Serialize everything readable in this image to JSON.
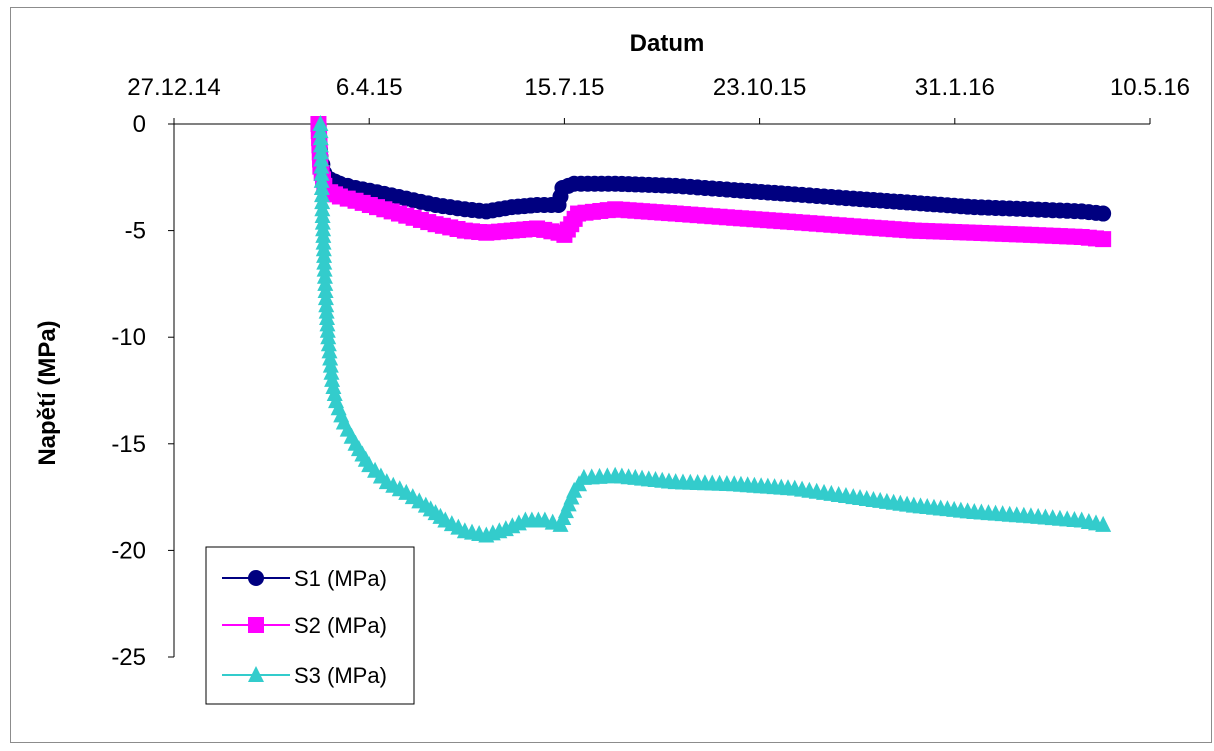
{
  "chart_data": {
    "type": "line",
    "title": "",
    "xlabel": "Datum",
    "ylabel": "Napětí (MPa)",
    "x_axis_position": "top",
    "x_ticks": [
      "27.12.14",
      "6.4.15",
      "15.7.15",
      "23.10.15",
      "31.1.16",
      "10.5.16"
    ],
    "x_tick_dates": [
      "2014-12-27",
      "2015-04-06",
      "2015-07-15",
      "2015-10-23",
      "2016-01-31",
      "2016-05-10"
    ],
    "xlim": [
      "2014-12-27",
      "2016-05-10"
    ],
    "y_ticks": [
      "0",
      "-5",
      "-10",
      "-15",
      "-20",
      "-25"
    ],
    "ylim": [
      -25,
      0
    ],
    "grid": false,
    "legend_position": "bottom-left",
    "series": [
      {
        "name": "S1 (MPa)",
        "color": "#000080",
        "marker": "circle",
        "points": [
          [
            "2015-03-11",
            0
          ],
          [
            "2015-03-12",
            -1.5
          ],
          [
            "2015-03-14",
            -2.3
          ],
          [
            "2015-03-17",
            -2.6
          ],
          [
            "2015-03-22",
            -2.8
          ],
          [
            "2015-03-30",
            -3.0
          ],
          [
            "2015-04-10",
            -3.2
          ],
          [
            "2015-04-25",
            -3.5
          ],
          [
            "2015-05-10",
            -3.8
          ],
          [
            "2015-05-25",
            -4.0
          ],
          [
            "2015-06-05",
            -4.1
          ],
          [
            "2015-06-18",
            -3.9
          ],
          [
            "2015-07-01",
            -3.8
          ],
          [
            "2015-07-12",
            -3.8
          ],
          [
            "2015-07-14",
            -3.0
          ],
          [
            "2015-07-20",
            -2.8
          ],
          [
            "2015-08-10",
            -2.8
          ],
          [
            "2015-09-10",
            -2.9
          ],
          [
            "2015-10-10",
            -3.1
          ],
          [
            "2015-11-10",
            -3.3
          ],
          [
            "2015-12-10",
            -3.5
          ],
          [
            "2016-01-10",
            -3.7
          ],
          [
            "2016-02-10",
            -3.9
          ],
          [
            "2016-03-10",
            -4.0
          ],
          [
            "2016-04-05",
            -4.1
          ],
          [
            "2016-04-16",
            -4.2
          ]
        ]
      },
      {
        "name": "S2 (MPa)",
        "color": "#ff00ff",
        "marker": "square",
        "points": [
          [
            "2015-03-11",
            0
          ],
          [
            "2015-03-12",
            -2.0
          ],
          [
            "2015-03-14",
            -2.9
          ],
          [
            "2015-03-17",
            -3.2
          ],
          [
            "2015-03-22",
            -3.4
          ],
          [
            "2015-03-30",
            -3.6
          ],
          [
            "2015-04-10",
            -3.9
          ],
          [
            "2015-04-25",
            -4.3
          ],
          [
            "2015-05-10",
            -4.7
          ],
          [
            "2015-05-25",
            -5.0
          ],
          [
            "2015-06-05",
            -5.1
          ],
          [
            "2015-06-18",
            -5.0
          ],
          [
            "2015-07-01",
            -4.9
          ],
          [
            "2015-07-12",
            -5.1
          ],
          [
            "2015-07-15",
            -5.2
          ],
          [
            "2015-07-22",
            -4.2
          ],
          [
            "2015-08-10",
            -4.0
          ],
          [
            "2015-09-10",
            -4.2
          ],
          [
            "2015-10-10",
            -4.4
          ],
          [
            "2015-11-10",
            -4.6
          ],
          [
            "2015-12-10",
            -4.8
          ],
          [
            "2016-01-10",
            -5.0
          ],
          [
            "2016-02-10",
            -5.1
          ],
          [
            "2016-03-10",
            -5.2
          ],
          [
            "2016-04-05",
            -5.3
          ],
          [
            "2016-04-16",
            -5.4
          ]
        ]
      },
      {
        "name": "S3 (MPa)",
        "color": "#33cccc",
        "marker": "triangle",
        "points": [
          [
            "2015-03-12",
            0
          ],
          [
            "2015-03-13",
            -4.0
          ],
          [
            "2015-03-14",
            -6.5
          ],
          [
            "2015-03-15",
            -8.5
          ],
          [
            "2015-03-16",
            -10.0
          ],
          [
            "2015-03-17",
            -11.0
          ],
          [
            "2015-03-18",
            -12.0
          ],
          [
            "2015-03-20",
            -13.0
          ],
          [
            "2015-03-24",
            -14.0
          ],
          [
            "2015-03-30",
            -15.0
          ],
          [
            "2015-04-06",
            -16.0
          ],
          [
            "2015-04-15",
            -16.8
          ],
          [
            "2015-04-25",
            -17.3
          ],
          [
            "2015-05-05",
            -17.9
          ],
          [
            "2015-05-15",
            -18.6
          ],
          [
            "2015-05-25",
            -19.1
          ],
          [
            "2015-06-05",
            -19.3
          ],
          [
            "2015-06-15",
            -19.0
          ],
          [
            "2015-06-25",
            -18.6
          ],
          [
            "2015-07-05",
            -18.6
          ],
          [
            "2015-07-13",
            -18.8
          ],
          [
            "2015-07-20",
            -17.2
          ],
          [
            "2015-07-25",
            -16.6
          ],
          [
            "2015-08-10",
            -16.5
          ],
          [
            "2015-09-10",
            -16.8
          ],
          [
            "2015-10-10",
            -16.9
          ],
          [
            "2015-11-10",
            -17.1
          ],
          [
            "2015-12-10",
            -17.5
          ],
          [
            "2016-01-10",
            -17.9
          ],
          [
            "2016-02-10",
            -18.2
          ],
          [
            "2016-03-10",
            -18.4
          ],
          [
            "2016-04-05",
            -18.6
          ],
          [
            "2016-04-16",
            -18.8
          ]
        ]
      }
    ]
  }
}
